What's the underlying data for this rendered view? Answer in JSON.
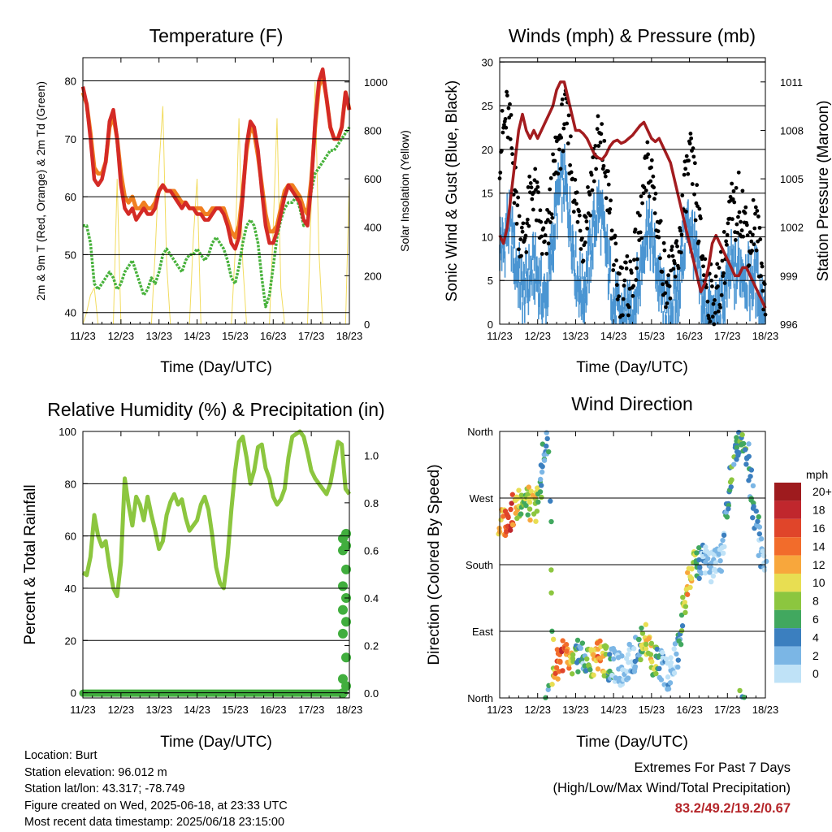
{
  "colors": {
    "temp2m": "#d42a26",
    "temp9m": "#f07f20",
    "dewpoint": "#48b23c",
    "solar": "#f2dc60",
    "wind": "#4a95d2",
    "gust": "#000000",
    "pressure": "#a31c1f",
    "humidity": "#8cc63f",
    "precip": "#41ae3e",
    "extremes": "#b5262a"
  },
  "xticks": [
    "11/23",
    "12/23",
    "13/23",
    "14/23",
    "15/23",
    "16/23",
    "17/23",
    "18/23"
  ],
  "chart_data": [
    {
      "id": "temp",
      "type": "line",
      "title": "Temperature (F)",
      "xlabel": "Time (Day/UTC)",
      "ylabel": "2m & 9m T (Red, Orange) & 2m Td (Green)",
      "y2label": "Solar Insolation (Yellow)",
      "ylim": [
        38,
        84
      ],
      "yticks": [
        40,
        50,
        60,
        70,
        80
      ],
      "y2lim": [
        0,
        1100
      ],
      "y2ticks": [
        0,
        200,
        400,
        600,
        800,
        1000
      ],
      "x": [
        0,
        0.1,
        0.2,
        0.3,
        0.4,
        0.5,
        0.6,
        0.7,
        0.8,
        0.9,
        1,
        1.1,
        1.2,
        1.3,
        1.4,
        1.5,
        1.6,
        1.7,
        1.8,
        1.9,
        2,
        2.1,
        2.2,
        2.3,
        2.4,
        2.5,
        2.6,
        2.7,
        2.8,
        2.9,
        3,
        3.1,
        3.2,
        3.3,
        3.4,
        3.5,
        3.6,
        3.7,
        3.8,
        3.9,
        4,
        4.1,
        4.2,
        4.3,
        4.4,
        4.5,
        4.6,
        4.7,
        4.8,
        4.9,
        5,
        5.1,
        5.2,
        5.3,
        5.4,
        5.5,
        5.6,
        5.7,
        5.8,
        5.9,
        6,
        6.1,
        6.2,
        6.3,
        6.4,
        6.5,
        6.6,
        6.7,
        6.8,
        6.9,
        7
      ],
      "series": [
        {
          "name": "2m T",
          "values": [
            79,
            76,
            70,
            63,
            62,
            63,
            66,
            73,
            75,
            70,
            62,
            58,
            57,
            58,
            56,
            57,
            58,
            57,
            57,
            58,
            61,
            62,
            61,
            61,
            60,
            59,
            58,
            59,
            58,
            58,
            57,
            57,
            56,
            56,
            57,
            58,
            58,
            57,
            55,
            52,
            51,
            53,
            60,
            69,
            73,
            72,
            68,
            61,
            55,
            52,
            52,
            54,
            57,
            60,
            62,
            61,
            60,
            59,
            56,
            55,
            62,
            73,
            80,
            82,
            77,
            72,
            70,
            70,
            72,
            78,
            75
          ]
        },
        {
          "name": "9m T",
          "values": [
            78,
            76,
            71,
            65,
            64,
            64,
            66,
            72,
            74,
            70,
            64,
            60,
            59,
            60,
            58,
            58,
            59,
            58,
            58,
            59,
            61,
            62,
            61,
            61,
            61,
            60,
            59,
            59,
            58,
            58,
            58,
            58,
            57,
            57,
            58,
            58,
            58,
            58,
            56,
            54,
            53,
            55,
            61,
            68,
            72,
            71,
            67,
            62,
            57,
            54,
            54,
            55,
            58,
            61,
            62,
            62,
            61,
            60,
            58,
            57,
            63,
            72,
            79,
            81,
            77,
            72,
            70,
            70,
            72,
            78,
            75
          ]
        },
        {
          "name": "2m Td",
          "values": [
            55,
            55,
            52,
            45,
            44,
            45,
            46,
            47,
            46,
            44,
            45,
            47,
            48,
            49,
            47,
            45,
            43,
            44,
            46,
            45,
            47,
            50,
            51,
            50,
            49,
            48,
            47,
            49,
            50,
            50,
            51,
            50,
            49,
            50,
            52,
            53,
            52,
            51,
            49,
            46,
            45,
            48,
            52,
            55,
            56,
            55,
            52,
            46,
            41,
            43,
            48,
            53,
            56,
            58,
            59,
            59,
            60,
            58,
            55,
            56,
            61,
            64,
            65,
            66,
            67,
            68,
            68,
            69,
            70,
            71,
            72
          ]
        },
        {
          "name": "Solar",
          "values": [
            0,
            50,
            120,
            150,
            0,
            0,
            0,
            0,
            0,
            600,
            0,
            0,
            0,
            0,
            0,
            0,
            0,
            0,
            0,
            300,
            650,
            900,
            250,
            0,
            0,
            0,
            0,
            0,
            0,
            350,
            600,
            0,
            0,
            0,
            0,
            0,
            0,
            0,
            0,
            0,
            300,
            850,
            250,
            0,
            0,
            0,
            0,
            0,
            0,
            0,
            400,
            850,
            150,
            0,
            0,
            0,
            0,
            0,
            0,
            0,
            500,
            1000,
            300,
            0,
            0,
            0,
            0,
            0,
            0,
            0,
            600
          ]
        }
      ]
    },
    {
      "id": "wind",
      "type": "scatter",
      "title": "Winds (mph) & Pressure (mb)",
      "xlabel": "Time (Day/UTC)",
      "ylabel": "Sonic Wind & Gust (Blue, Black)",
      "y2label": "Station Pressure (Maroon)",
      "ylim": [
        0,
        30
      ],
      "yticks": [
        0,
        5,
        10,
        15,
        20,
        25,
        30
      ],
      "y2lim": [
        996,
        1012.5
      ],
      "y2ticks": [
        996,
        999,
        1002,
        1005,
        1008,
        1011
      ],
      "x": [
        0,
        0.1,
        0.2,
        0.3,
        0.4,
        0.5,
        0.6,
        0.7,
        0.8,
        0.9,
        1,
        1.1,
        1.2,
        1.3,
        1.4,
        1.5,
        1.6,
        1.7,
        1.8,
        1.9,
        2,
        2.1,
        2.2,
        2.3,
        2.4,
        2.5,
        2.6,
        2.7,
        2.8,
        2.9,
        3,
        3.1,
        3.2,
        3.3,
        3.4,
        3.5,
        3.6,
        3.7,
        3.8,
        3.9,
        4,
        4.1,
        4.2,
        4.3,
        4.4,
        4.5,
        4.6,
        4.7,
        4.8,
        4.9,
        5,
        5.1,
        5.2,
        5.3,
        5.4,
        5.5,
        5.6,
        5.7,
        5.8,
        5.9,
        6,
        6.1,
        6.2,
        6.3,
        6.4,
        6.5,
        6.6,
        6.7,
        6.8,
        6.9,
        7
      ],
      "series": [
        {
          "name": "Gust",
          "values": [
            20,
            22,
            24,
            21,
            16,
            12,
            9,
            11,
            14,
            16,
            13,
            10,
            8,
            12,
            16,
            19,
            21,
            24,
            22,
            18,
            14,
            12,
            10,
            13,
            16,
            19,
            21,
            20,
            17,
            13,
            8,
            5,
            4,
            5,
            4,
            6,
            8,
            11,
            15,
            18,
            17,
            14,
            10,
            7,
            5,
            5,
            6,
            8,
            12,
            16,
            19,
            17,
            13,
            9,
            6,
            4,
            3,
            3,
            5,
            7,
            10,
            13,
            12,
            14,
            13,
            11,
            9,
            12,
            10,
            6,
            4
          ]
        },
        {
          "name": "Wind",
          "values": [
            10,
            9,
            12,
            11,
            8,
            6,
            4,
            5,
            6,
            7,
            6,
            4,
            3,
            6,
            10,
            14,
            16,
            17,
            14,
            11,
            7,
            5,
            4,
            6,
            9,
            12,
            14,
            12,
            9,
            6,
            3,
            2,
            1,
            2,
            1,
            2,
            4,
            6,
            10,
            12,
            10,
            8,
            5,
            3,
            2,
            2,
            3,
            4,
            8,
            11,
            12,
            10,
            7,
            4,
            2,
            2,
            1,
            1,
            2,
            3,
            5,
            7,
            6,
            7,
            7,
            6,
            5,
            6,
            5,
            3,
            2
          ]
        },
        {
          "name": "Pressure",
          "values": [
            1001.5,
            1001,
            1002,
            1004,
            1006,
            1008,
            1009,
            1008,
            1007.5,
            1008,
            1007.5,
            1008,
            1008.5,
            1009,
            1009.5,
            1010.5,
            1011,
            1011,
            1010,
            1009,
            1008,
            1008,
            1007.8,
            1007.5,
            1007,
            1006.5,
            1006.3,
            1006.2,
            1006.5,
            1007,
            1007.3,
            1007.4,
            1007.2,
            1007.3,
            1007.5,
            1007.7,
            1008,
            1008.3,
            1008.5,
            1008,
            1007.5,
            1007.3,
            1007.5,
            1007,
            1006.5,
            1006,
            1005,
            1004,
            1003,
            1002,
            1001,
            1000,
            999,
            998,
            998.5,
            999.5,
            1001,
            1001.5,
            1001,
            1000.5,
            1000,
            999.5,
            999,
            999,
            999.5,
            999.5,
            999,
            998.5,
            998,
            997.5,
            997
          ]
        }
      ]
    },
    {
      "id": "rh",
      "type": "line",
      "title": "Relative Humidity (%) & Precipitation (in)",
      "xlabel": "Time (Day/UTC)",
      "ylabel": "Percent & Total Rainfall",
      "ylim": [
        -2,
        100
      ],
      "yticks": [
        0,
        20,
        40,
        60,
        80,
        100
      ],
      "y2lim": [
        -0.02,
        1.1
      ],
      "y2ticks": [
        "0.0",
        "0.2",
        "0.4",
        "0.6",
        "0.8",
        "1.0"
      ],
      "x": [
        0,
        0.1,
        0.2,
        0.3,
        0.4,
        0.5,
        0.6,
        0.7,
        0.8,
        0.9,
        1,
        1.1,
        1.2,
        1.3,
        1.4,
        1.5,
        1.6,
        1.7,
        1.8,
        1.9,
        2,
        2.1,
        2.2,
        2.3,
        2.4,
        2.5,
        2.6,
        2.7,
        2.8,
        2.9,
        3,
        3.1,
        3.2,
        3.3,
        3.4,
        3.5,
        3.6,
        3.7,
        3.8,
        3.9,
        4,
        4.1,
        4.2,
        4.3,
        4.4,
        4.5,
        4.6,
        4.7,
        4.8,
        4.9,
        5,
        5.1,
        5.2,
        5.3,
        5.4,
        5.5,
        5.6,
        5.7,
        5.8,
        5.9,
        6,
        6.1,
        6.2,
        6.3,
        6.4,
        6.5,
        6.6,
        6.7,
        6.8,
        6.9,
        7
      ],
      "series": [
        {
          "name": "RH",
          "values": [
            46,
            45,
            52,
            68,
            60,
            56,
            58,
            48,
            40,
            37,
            50,
            82,
            72,
            64,
            75,
            72,
            66,
            75,
            68,
            62,
            55,
            58,
            68,
            73,
            76,
            72,
            74,
            67,
            62,
            64,
            66,
            72,
            75,
            70,
            60,
            48,
            42,
            40,
            52,
            70,
            85,
            96,
            98,
            90,
            80,
            85,
            94,
            95,
            86,
            82,
            75,
            72,
            74,
            78,
            90,
            98,
            99,
            100,
            98,
            92,
            85,
            82,
            80,
            78,
            76,
            80,
            88,
            96,
            95,
            78,
            76
          ]
        },
        {
          "name": "Precip",
          "values": [
            0,
            0,
            0,
            0,
            0,
            0,
            0,
            0,
            0,
            0,
            0,
            0,
            0,
            0,
            0,
            0,
            0,
            0,
            0,
            0,
            0,
            0,
            0,
            0,
            0,
            0,
            0,
            0,
            0,
            0,
            0,
            0,
            0,
            0,
            0,
            0,
            0,
            0,
            0,
            0,
            0,
            0,
            0,
            0,
            0,
            0,
            0,
            0,
            0,
            0,
            0,
            0,
            0,
            0,
            0,
            0,
            0,
            0,
            0,
            0,
            0,
            0,
            0,
            0,
            0,
            0,
            0,
            0,
            0,
            0,
            0.67
          ]
        }
      ]
    },
    {
      "id": "dir",
      "type": "scatter",
      "title": "Wind Direction",
      "xlabel": "Time (Day/UTC)",
      "ylabel": "Direction (Colored By Speed)",
      "ylim": [
        0,
        360
      ],
      "yticks": [
        "North",
        "East",
        "South",
        "West",
        "North"
      ],
      "x": [
        0,
        0.1,
        0.2,
        0.3,
        0.4,
        0.5,
        0.6,
        0.7,
        0.8,
        0.9,
        1,
        1.1,
        1.2,
        1.3,
        1.4,
        1.5,
        1.6,
        1.7,
        1.8,
        1.9,
        2,
        2.1,
        2.2,
        2.3,
        2.4,
        2.5,
        2.6,
        2.7,
        2.8,
        2.9,
        3,
        3.1,
        3.2,
        3.3,
        3.4,
        3.5,
        3.6,
        3.7,
        3.8,
        3.9,
        4,
        4.1,
        4.2,
        4.3,
        4.4,
        4.5,
        4.6,
        4.7,
        4.8,
        4.9,
        5,
        5.1,
        5.2,
        5.3,
        5.4,
        5.5,
        5.6,
        5.7,
        5.8,
        5.9,
        6,
        6.1,
        6.2,
        6.3,
        6.4,
        6.5,
        6.6,
        6.7,
        6.8,
        6.9,
        7
      ],
      "direction": [
        232,
        238,
        245,
        250,
        255,
        262,
        270,
        268,
        262,
        255,
        265,
        300,
        340,
        355,
        25,
        45,
        55,
        60,
        48,
        38,
        55,
        58,
        52,
        50,
        48,
        55,
        60,
        58,
        50,
        42,
        45,
        40,
        35,
        42,
        48,
        55,
        62,
        70,
        80,
        75,
        55,
        50,
        45,
        40,
        35,
        30,
        45,
        65,
        100,
        140,
        160,
        175,
        180,
        185,
        190,
        180,
        175,
        182,
        188,
        215,
        255,
        300,
        330,
        350,
        355,
        340,
        300,
        260,
        230,
        195,
        175
      ],
      "speed": [
        12,
        14,
        18,
        17,
        12,
        10,
        8,
        9,
        10,
        11,
        9,
        6,
        4,
        6,
        10,
        14,
        16,
        17,
        14,
        11,
        7,
        5,
        4,
        6,
        9,
        12,
        14,
        12,
        9,
        6,
        3,
        2,
        1,
        2,
        1,
        2,
        4,
        6,
        10,
        12,
        10,
        8,
        5,
        3,
        2,
        2,
        3,
        4,
        8,
        11,
        12,
        10,
        7,
        4,
        2,
        2,
        1,
        1,
        2,
        3,
        5,
        7,
        6,
        7,
        7,
        6,
        5,
        6,
        5,
        3,
        2
      ],
      "legend": {
        "title": "mph",
        "labels": [
          "20+",
          "18",
          "16",
          "14",
          "12",
          "10",
          "8",
          "6",
          "4",
          "2",
          "0"
        ],
        "colors": [
          "#9e1b1e",
          "#c0272d",
          "#e0452a",
          "#f26c2b",
          "#f8a73c",
          "#e8de52",
          "#8cc63f",
          "#41a85f",
          "#3b7fbf",
          "#7bb6e5",
          "#bfe2f7"
        ]
      }
    }
  ],
  "info": {
    "location": "Location: Burt",
    "elevation": "Station elevation: 96.012 m",
    "latlon": "Station lat/lon: 43.317; -78.749",
    "created": "Figure created on Wed, 2025-06-18, at 23:33 UTC",
    "recent": "Most recent data timestamp: 2025/06/18 23:15:00"
  },
  "extremes": {
    "heading": "Extremes For Past 7 Days",
    "sub": "(High/Low/Max Wind/Total Precipitation)",
    "values": "83.2/49.2/19.2/0.67"
  }
}
